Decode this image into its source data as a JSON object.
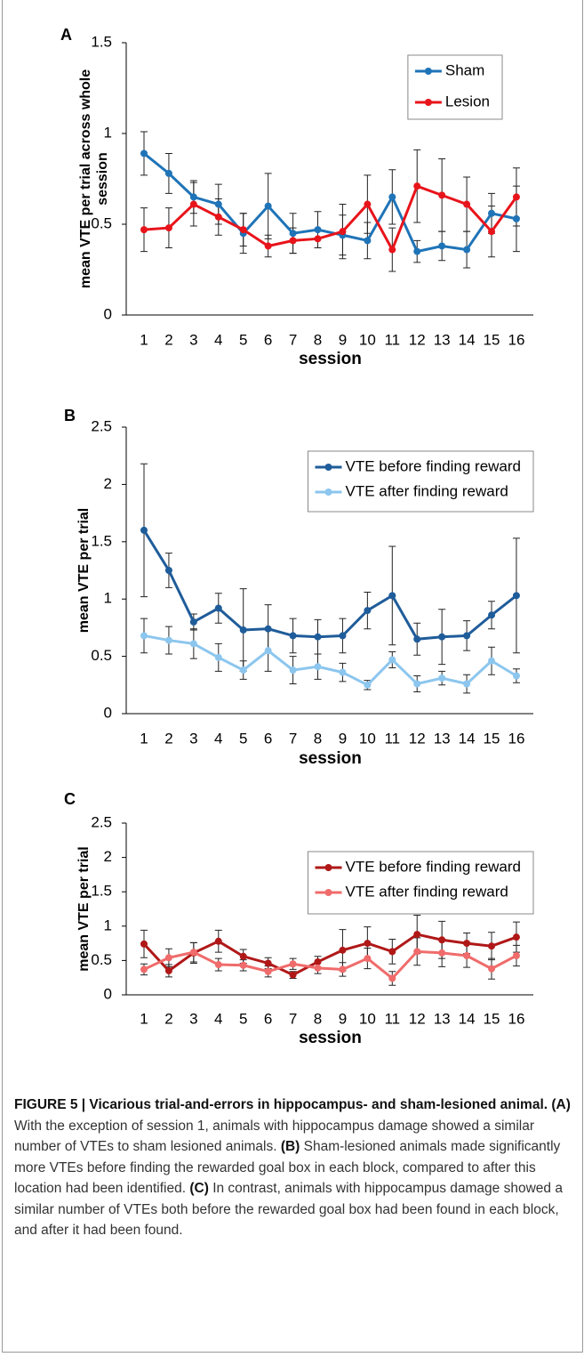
{
  "chart_data": [
    {
      "type": "line",
      "panel_label": "A",
      "ylabel": [
        "mean VTE per trial across whole",
        "session"
      ],
      "xlabel": "session",
      "categories": [
        "1",
        "2",
        "3",
        "4",
        "5",
        "6",
        "7",
        "8",
        "9",
        "10",
        "11",
        "12",
        "13",
        "14",
        "15",
        "16"
      ],
      "ylim": [
        0,
        1.5
      ],
      "yticks": [
        0,
        0.5,
        1,
        1.5
      ],
      "legend": "upper right",
      "series": [
        {
          "name": "Sham",
          "color": "#1f74b8",
          "values": [
            0.89,
            0.78,
            0.65,
            0.61,
            0.45,
            0.6,
            0.45,
            0.47,
            0.44,
            0.41,
            0.65,
            0.35,
            0.38,
            0.36,
            0.56,
            0.53
          ],
          "errors": [
            0.12,
            0.11,
            0.09,
            0.11,
            0.11,
            0.18,
            0.11,
            0.1,
            0.11,
            0.1,
            0.15,
            0.06,
            0.08,
            0.1,
            0.11,
            0.18
          ]
        },
        {
          "name": "Lesion",
          "color": "#e8141b",
          "values": [
            0.47,
            0.48,
            0.61,
            0.54,
            0.47,
            0.38,
            0.41,
            0.42,
            0.46,
            0.61,
            0.36,
            0.71,
            0.66,
            0.61,
            0.46,
            0.65
          ],
          "errors": [
            0.12,
            0.11,
            0.12,
            0.1,
            0.09,
            0.06,
            0.07,
            0.05,
            0.15,
            0.16,
            0.12,
            0.2,
            0.2,
            0.15,
            0.14,
            0.16
          ]
        }
      ]
    },
    {
      "type": "line",
      "panel_label": "B",
      "ylabel": [
        "mean VTE per trial"
      ],
      "xlabel": "session",
      "categories": [
        "1",
        "2",
        "3",
        "4",
        "5",
        "6",
        "7",
        "8",
        "9",
        "10",
        "11",
        "12",
        "13",
        "14",
        "15",
        "16"
      ],
      "ylim": [
        0,
        2.5
      ],
      "yticks": [
        0,
        0.5,
        1,
        1.5,
        2,
        2.5
      ],
      "legend": "upper right",
      "series": [
        {
          "name": "VTE before finding reward",
          "color": "#1f5c9a",
          "values": [
            1.6,
            1.25,
            0.8,
            0.92,
            0.73,
            0.74,
            0.68,
            0.67,
            0.68,
            0.9,
            1.03,
            0.65,
            0.67,
            0.68,
            0.86,
            1.03
          ],
          "errors": [
            0.58,
            0.15,
            0.07,
            0.13,
            0.36,
            0.21,
            0.15,
            0.15,
            0.15,
            0.16,
            0.43,
            0.14,
            0.24,
            0.13,
            0.12,
            0.5
          ]
        },
        {
          "name": "VTE after finding reward",
          "color": "#8cc6ee",
          "values": [
            0.68,
            0.64,
            0.61,
            0.49,
            0.38,
            0.55,
            0.38,
            0.41,
            0.36,
            0.25,
            0.47,
            0.26,
            0.31,
            0.26,
            0.46,
            0.33
          ],
          "errors": [
            0.15,
            0.12,
            0.13,
            0.12,
            0.08,
            0.18,
            0.12,
            0.11,
            0.08,
            0.04,
            0.07,
            0.07,
            0.06,
            0.08,
            0.12,
            0.06
          ]
        }
      ]
    },
    {
      "type": "line",
      "panel_label": "C",
      "ylabel": [
        "mean VTE per trial"
      ],
      "xlabel": "session",
      "categories": [
        "1",
        "2",
        "3",
        "4",
        "5",
        "6",
        "7",
        "8",
        "9",
        "10",
        "11",
        "12",
        "13",
        "14",
        "15",
        "16"
      ],
      "ylim": [
        0,
        2.5
      ],
      "yticks": [
        0,
        0.5,
        1,
        1.5,
        2,
        2.5
      ],
      "legend": "upper right",
      "series": [
        {
          "name": "VTE before finding reward",
          "color": "#b01818",
          "values": [
            0.74,
            0.35,
            0.61,
            0.78,
            0.56,
            0.46,
            0.29,
            0.48,
            0.65,
            0.75,
            0.63,
            0.88,
            0.8,
            0.75,
            0.71,
            0.84
          ],
          "errors": [
            0.2,
            0.09,
            0.15,
            0.16,
            0.1,
            0.08,
            0.05,
            0.08,
            0.3,
            0.24,
            0.18,
            0.28,
            0.27,
            0.15,
            0.2,
            0.22
          ]
        },
        {
          "name": "VTE after finding reward",
          "color": "#f06b6b",
          "values": [
            0.37,
            0.54,
            0.62,
            0.44,
            0.43,
            0.34,
            0.45,
            0.39,
            0.37,
            0.53,
            0.24,
            0.63,
            0.61,
            0.57,
            0.38,
            0.57
          ],
          "errors": [
            0.08,
            0.13,
            0.14,
            0.09,
            0.08,
            0.08,
            0.08,
            0.08,
            0.1,
            0.15,
            0.1,
            0.2,
            0.2,
            0.17,
            0.15,
            0.15
          ]
        }
      ]
    }
  ],
  "caption": {
    "title": "FIGURE 5 | Vicarious trial-and-errors in hippocampus- and sham-lesioned animal.",
    "parts": [
      {
        "label": "(A)",
        "text": "With the exception of session 1, animals with hippocampus damage showed a similar number of VTEs to sham lesioned animals."
      },
      {
        "label": "(B)",
        "text": "Sham-lesioned animals made significantly more VTEs before finding the rewarded goal box in each block, compared to after this location had been identified."
      },
      {
        "label": "(C)",
        "text": "In contrast, animals with hippocampus damage showed a similar number of VTEs both before the rewarded goal box had been found in each block, and after it had been found."
      }
    ]
  }
}
